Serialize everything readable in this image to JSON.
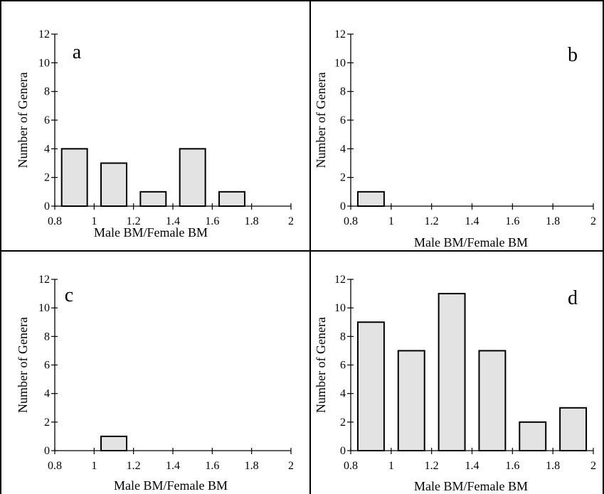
{
  "chart_data": [
    {
      "type": "bar",
      "panel_label": "a",
      "x": [
        0.9,
        1.1,
        1.3,
        1.5,
        1.7,
        1.9
      ],
      "values": [
        4,
        3,
        1,
        4,
        1,
        0
      ],
      "xlabel": "Male BM/Female BM",
      "ylabel": "Number of Genera",
      "xlim": [
        0.8,
        2
      ],
      "ylim": [
        0,
        12
      ],
      "xticks": [
        "0.8",
        "1",
        "1.2",
        "1.4",
        "1.6",
        "1.8",
        "2"
      ],
      "yticks": [
        "0",
        "2",
        "4",
        "6",
        "8",
        "10",
        "12"
      ],
      "grid": false
    },
    {
      "type": "bar",
      "panel_label": "b",
      "x": [
        0.9,
        1.1,
        1.3,
        1.5,
        1.7,
        1.9
      ],
      "values": [
        1,
        0,
        0,
        0,
        0,
        0
      ],
      "xlabel": "Male BM/Female BM",
      "ylabel": "Number of Genera",
      "xlim": [
        0.8,
        2
      ],
      "ylim": [
        0,
        12
      ],
      "xticks": [
        "0.8",
        "1",
        "1.2",
        "1.4",
        "1.6",
        "1.8",
        "2"
      ],
      "yticks": [
        "0",
        "2",
        "4",
        "6",
        "8",
        "10",
        "12"
      ],
      "grid": false
    },
    {
      "type": "bar",
      "panel_label": "c",
      "x": [
        0.9,
        1.1,
        1.3,
        1.5,
        1.7,
        1.9
      ],
      "values": [
        0,
        1,
        0,
        0,
        0,
        0
      ],
      "xlabel": "Male BM/Female BM",
      "ylabel": "Number of Genera",
      "xlim": [
        0.8,
        2
      ],
      "ylim": [
        0,
        12
      ],
      "xticks": [
        "0.8",
        "1",
        "1.2",
        "1.4",
        "1.6",
        "1.8",
        "2"
      ],
      "yticks": [
        "0",
        "2",
        "4",
        "6",
        "8",
        "10",
        "12"
      ],
      "grid": false
    },
    {
      "type": "bar",
      "panel_label": "d",
      "x": [
        0.9,
        1.1,
        1.3,
        1.5,
        1.7,
        1.9
      ],
      "values": [
        9,
        7,
        11,
        7,
        2,
        3
      ],
      "xlabel": "Male BM/Female BM",
      "ylabel": "Number of Genera",
      "xlim": [
        0.8,
        2
      ],
      "ylim": [
        0,
        12
      ],
      "xticks": [
        "0.8",
        "1",
        "1.2",
        "1.4",
        "1.6",
        "1.8",
        "2"
      ],
      "yticks": [
        "0",
        "2",
        "4",
        "6",
        "8",
        "10",
        "12"
      ],
      "grid": false
    }
  ],
  "colors": {
    "bar_fill": "#e3e3e3",
    "bar_stroke": "#000000",
    "frame": "#000000"
  }
}
